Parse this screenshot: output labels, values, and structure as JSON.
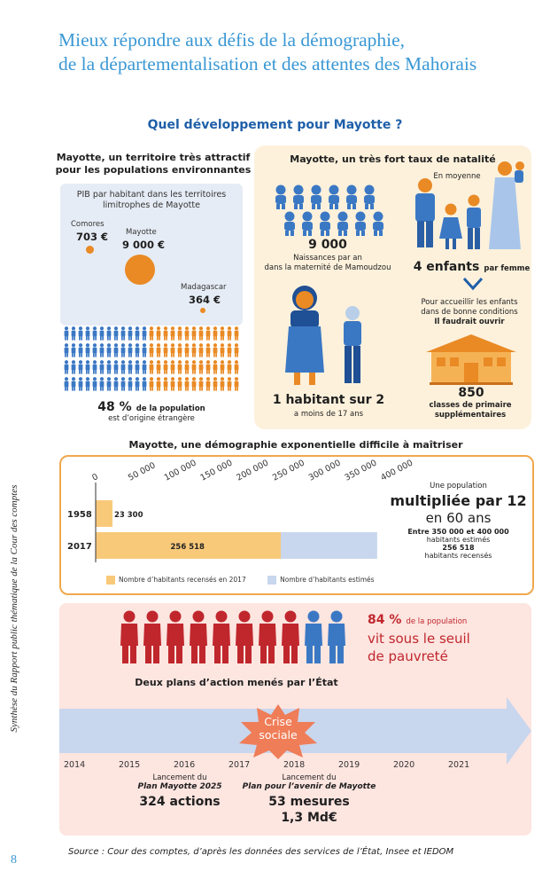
{
  "page": {
    "title_line1": "Mieux répondre aux défis de la démographie,",
    "title_line2": "de la départementalisation et des attentes des Mahorais",
    "subtitle": "Quel développement pour Mayotte ?",
    "side_text": "Synthèse du Rapport public thématique de la Cour des comptes",
    "page_number": "8",
    "source": "Source : Cour des comptes, d’après les données des services de l’État, Insee et IEDOM"
  },
  "attractive": {
    "heading_line1": "Mayotte, un territoire très attractif",
    "heading_line2": "pour les populations environnantes",
    "pib_line1": "PIB par habitant dans les territoires",
    "pib_line2": "limitrophes de Mayotte",
    "comores_label": "Comores",
    "comores_value": "703 €",
    "mayotte_label": "Mayotte",
    "mayotte_value": "9 000 €",
    "madagascar_label": "Madagascar",
    "madagascar_value": "364 €",
    "foreign_pct": "48 %",
    "foreign_text1": "de la population",
    "foreign_text2": "est d’origine étrangère",
    "foreign_share": 0.48
  },
  "natality": {
    "heading": "Mayotte, un très fort taux de natalité",
    "births_value": "9 000",
    "births_line1": "Naissances par an",
    "births_line2": "dans la maternité de Mamoudzou",
    "average_label": "En moyenne",
    "children_value": "4 enfants",
    "children_suffix": "par femme",
    "schools_line1": "Pour accueillir les enfants",
    "schools_line2": "dans de bonne conditions",
    "schools_line3": "Il faudrait ouvrir",
    "classes_value": "850",
    "classes_line1": "classes de primaire",
    "classes_line2": "supplémentaires",
    "young_value": "1 habitant sur 2",
    "young_text": "a moins de 17 ans"
  },
  "demography": {
    "heading": "Mayotte, une démographie exponentielle difficile à maîtriser",
    "multiply_line1": "Une population",
    "multiply_line2": "multipliée par 12",
    "multiply_line3": "en 60 ans",
    "estimate_line1": "Entre 350 000 et 400 000",
    "estimate_line2": "habitants estimés",
    "census_line1": "256 518",
    "census_line2": "habitants recensés",
    "legend_census": "Nombre d’habitants recensés en 2017",
    "legend_estimated": "Nombre d’habitants estimés"
  },
  "chart_data": {
    "type": "bar",
    "orientation": "horizontal",
    "categories": [
      "1958",
      "2017"
    ],
    "series": [
      {
        "name": "Nombre d’habitants recensés en 2017",
        "values": [
          23300,
          256518
        ],
        "labels": [
          "23 300",
          "256 518"
        ],
        "color": "#f9c97a"
      },
      {
        "name": "Nombre d’habitants estimés",
        "values": [
          null,
          390000
        ],
        "color": "#c8d6ee"
      }
    ],
    "xlim": [
      0,
      400000
    ],
    "x_ticks": [
      "0",
      "50 000",
      "100 000",
      "150 000",
      "200 000",
      "250 000",
      "300 000",
      "350 000",
      "400 000"
    ],
    "legend": "bottom"
  },
  "poverty": {
    "pct": "84 %",
    "pct_suffix": "de la population",
    "line1": "vit sous le seuil",
    "line2": "de pauvreté",
    "share": 0.84,
    "plans_heading": "Deux plans d’action menés par l’État",
    "crisis_line1": "Crise",
    "crisis_line2": "sociale",
    "years": [
      "2014",
      "2015",
      "2016",
      "2017",
      "2018",
      "2019",
      "2020",
      "2021"
    ],
    "plan1_line1": "Lancement du",
    "plan1_line2": "Plan Mayotte 2025",
    "plan1_value": "324 actions",
    "plan2_line1": "Lancement du",
    "plan2_line2": "Plan pour l’avenir de Mayotte",
    "plan2_value1": "53 mesures",
    "plan2_value2": "1,3 Md€"
  },
  "colors": {
    "title_blue": "#3a98d4",
    "person_blue": "#3b78c4",
    "person_orange": "#e98a25",
    "person_red": "#c0272d",
    "accent_red": "#c0272d",
    "chart_border": "#f0a84c"
  }
}
